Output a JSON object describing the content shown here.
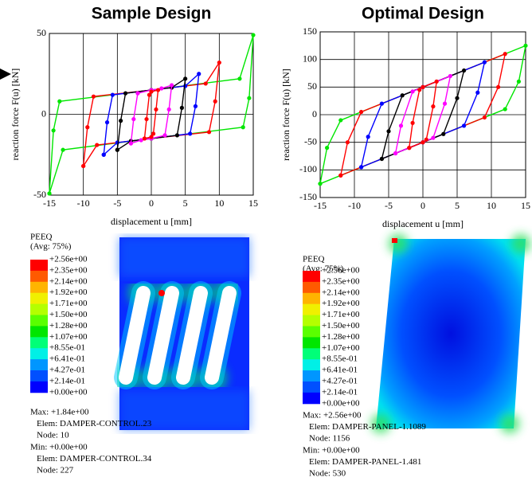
{
  "chart_data": [
    {
      "type": "line",
      "title": "Sample Design",
      "xlabel": "displacement u [mm]",
      "ylabel": "reaction force  F(u) [kN]",
      "xlim": [
        -15,
        15
      ],
      "ylim": [
        -50,
        50
      ],
      "xticks": [
        -15,
        -10,
        -5,
        0,
        5,
        10,
        15
      ],
      "yticks": [
        -50,
        0,
        50
      ],
      "grid": true,
      "series": [
        {
          "color": "#00e600",
          "x": [
            -15,
            -14.4,
            -13.5,
            0,
            13,
            15,
            14.4,
            13.5,
            0,
            -13,
            -15
          ],
          "values": [
            -49,
            -10,
            8,
            15,
            22,
            49,
            10,
            -8,
            -15,
            -22,
            -49
          ]
        },
        {
          "color": "#ff0000",
          "x": [
            -10,
            -9.4,
            -8.5,
            0,
            8,
            10,
            9.4,
            8.5,
            0,
            -8,
            -10
          ],
          "values": [
            -32,
            -8,
            11,
            15,
            19,
            32,
            8,
            -11,
            -15,
            -19,
            -32
          ]
        },
        {
          "color": "#0000ff",
          "x": [
            -7,
            -6.5,
            -5.7,
            0,
            5,
            7,
            6.5,
            5.7,
            0,
            -5,
            -7
          ],
          "values": [
            -25,
            -5,
            12,
            15,
            17.5,
            25,
            5,
            -12,
            -15,
            -17.5,
            -25
          ]
        },
        {
          "color": "#000000",
          "x": [
            -5,
            -4.5,
            -3.8,
            0,
            3,
            5,
            4.5,
            3.8,
            0,
            -3,
            -5
          ],
          "values": [
            -22,
            -4,
            13,
            15,
            16.5,
            22,
            4,
            -13,
            -15,
            -16.5,
            -22
          ]
        },
        {
          "color": "#ff00ff",
          "x": [
            -3,
            -2.6,
            -2,
            0,
            1.5,
            3,
            2.6,
            2,
            0,
            -1.5,
            -3
          ],
          "values": [
            -18,
            -3,
            13,
            15,
            16,
            18,
            3,
            -13,
            -15,
            -16,
            -18
          ]
        },
        {
          "color": "#ff0000",
          "x": [
            -1,
            -0.7,
            -0.3,
            0,
            1,
            0.7,
            0.3,
            0,
            -1
          ],
          "values": [
            -15,
            -3,
            12,
            14,
            15,
            3,
            -12,
            -14,
            -15
          ]
        }
      ]
    },
    {
      "type": "line",
      "title": "Optimal Design",
      "xlabel": "displacement u [mm]",
      "ylabel": "reaction force  F(u) [kN]",
      "xlim": [
        -15,
        15
      ],
      "ylim": [
        -150,
        150
      ],
      "xticks": [
        -15,
        -10,
        -5,
        0,
        5,
        10,
        15
      ],
      "yticks": [
        -150,
        -100,
        -50,
        0,
        50,
        100,
        150
      ],
      "grid": true,
      "series": [
        {
          "color": "#00e600",
          "x": [
            -15,
            -14,
            -12,
            0,
            15,
            14,
            12,
            0,
            -15
          ],
          "values": [
            -125,
            -60,
            -10,
            50,
            125,
            60,
            10,
            -50,
            -125
          ]
        },
        {
          "color": "#ff0000",
          "x": [
            -12,
            -11,
            -9,
            0,
            12,
            11,
            9,
            0,
            -12
          ],
          "values": [
            -110,
            -50,
            5,
            50,
            110,
            50,
            -5,
            -50,
            -110
          ]
        },
        {
          "color": "#0000ff",
          "x": [
            -9,
            -8,
            -6,
            0,
            9,
            8,
            6,
            0,
            -9
          ],
          "values": [
            -95,
            -40,
            20,
            50,
            95,
            40,
            -20,
            -50,
            -95
          ]
        },
        {
          "color": "#000000",
          "x": [
            -6,
            -5,
            -3,
            0,
            6,
            5,
            3,
            0,
            -6
          ],
          "values": [
            -80,
            -30,
            35,
            50,
            80,
            30,
            -35,
            -50,
            -80
          ]
        },
        {
          "color": "#ff00ff",
          "x": [
            -4,
            -3.2,
            -1.5,
            0,
            4,
            3.2,
            1.5,
            0,
            -4
          ],
          "values": [
            -70,
            -20,
            42,
            50,
            70,
            20,
            -42,
            -50,
            -70
          ]
        },
        {
          "color": "#ff0000",
          "x": [
            -2,
            -1.5,
            -0.5,
            0,
            2,
            1.5,
            0.5,
            0,
            -2
          ],
          "values": [
            -60,
            -15,
            45,
            50,
            60,
            15,
            -45,
            -50,
            -60
          ]
        }
      ]
    }
  ],
  "contours": [
    {
      "variable": "PEEQ",
      "averaging": "(Avg: 75%)",
      "levels": [
        "+2.56e+00",
        "+2.35e+00",
        "+2.14e+00",
        "+1.92e+00",
        "+1.71e+00",
        "+1.50e+00",
        "+1.28e+00",
        "+1.07e+00",
        "+8.55e-01",
        "+6.41e-01",
        "+4.27e-01",
        "+2.14e-01",
        "+0.00e+00"
      ],
      "colors": [
        "#ff0000",
        "#ff5a00",
        "#ffb400",
        "#f0f000",
        "#b4ff00",
        "#5aff00",
        "#00e600",
        "#00ff78",
        "#00f0e6",
        "#0096ff",
        "#0050ff",
        "#0000ff"
      ],
      "max": {
        "label": "Max: +1.84e+00",
        "elem": "Elem: DAMPER-CONTROL.23",
        "node": "Node: 10"
      },
      "min": {
        "label": "Min: +0.00e+00",
        "elem": "Elem: DAMPER-CONTROL.34",
        "node": "Node: 227"
      }
    },
    {
      "variable": "PEEQ",
      "averaging": "(Avg: 75%)",
      "levels": [
        "+2.56e+00",
        "+2.35e+00",
        "+2.14e+00",
        "+1.92e+00",
        "+1.71e+00",
        "+1.50e+00",
        "+1.28e+00",
        "+1.07e+00",
        "+8.55e-01",
        "+6.41e-01",
        "+4.27e-01",
        "+2.14e-01",
        "+0.00e+00"
      ],
      "colors": [
        "#ff0000",
        "#ff5a00",
        "#ffb400",
        "#f0f000",
        "#b4ff00",
        "#5aff00",
        "#00e600",
        "#00ff78",
        "#00f0e6",
        "#0096ff",
        "#0050ff",
        "#0000ff"
      ],
      "max": {
        "label": "Max: +2.56e+00",
        "elem": "Elem: DAMPER-PANEL-1.1089",
        "node": "Node: 1156"
      },
      "min": {
        "label": "Min: +0.00e+00",
        "elem": "Elem: DAMPER-PANEL-1.481",
        "node": "Node: 530"
      }
    }
  ]
}
